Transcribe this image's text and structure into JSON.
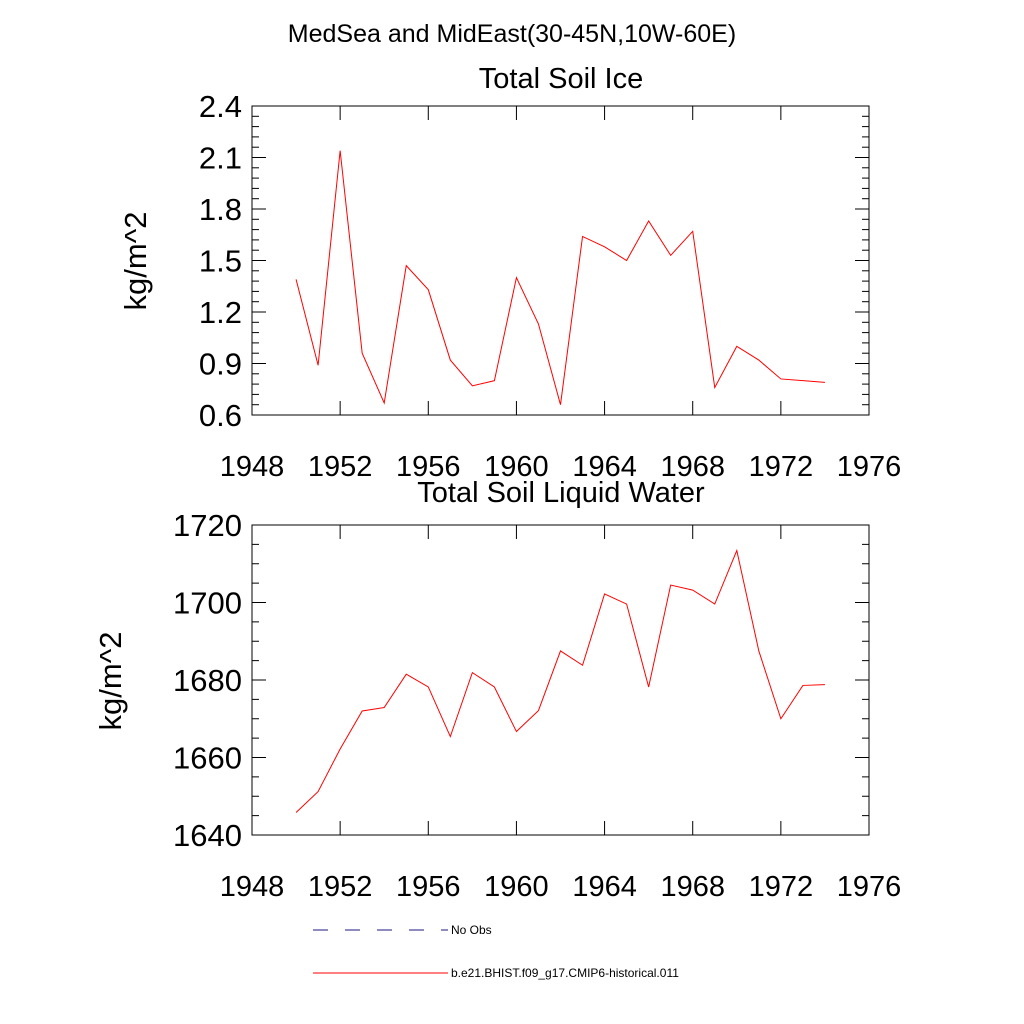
{
  "figure": {
    "main_title": "MedSea and MidEast(30-45N,10W-60E)"
  },
  "colors": {
    "model_series": "#ff0000",
    "obs_series": "#1a1a80",
    "axes": "#000000"
  },
  "chart_data": [
    {
      "type": "line",
      "title": "Total Soil Ice",
      "xlabel": "",
      "ylabel": "kg/m^2",
      "xlim": [
        1948,
        1976
      ],
      "ylim": [
        0.6,
        2.4
      ],
      "x_ticks": [
        1948,
        1952,
        1956,
        1960,
        1964,
        1968,
        1972,
        1976
      ],
      "x_tick_labels": [
        "1948",
        "1952",
        "1956",
        "1960",
        "1964",
        "1968",
        "1972",
        "1976"
      ],
      "y_ticks": [
        0.6,
        0.9,
        1.2,
        1.5,
        1.8,
        2.1,
        2.4
      ],
      "y_tick_labels": [
        "0.6",
        "0.9",
        "1.2",
        "1.5",
        "1.8",
        "2.1",
        "2.4"
      ],
      "grid": false,
      "series": [
        {
          "name": "b.e21.BHIST.f09_g17.CMIP6-historical.011",
          "color": "#ff0000",
          "x": [
            1950,
            1951,
            1952,
            1953,
            1954,
            1955,
            1956,
            1957,
            1958,
            1959,
            1960,
            1961,
            1962,
            1963,
            1964,
            1965,
            1966,
            1967,
            1968,
            1969,
            1970,
            1971,
            1972,
            1973,
            1974
          ],
          "y": [
            1.39,
            0.89,
            2.14,
            0.96,
            0.67,
            1.47,
            1.33,
            0.92,
            0.77,
            0.8,
            1.4,
            1.13,
            0.66,
            1.64,
            1.58,
            1.5,
            1.73,
            1.53,
            1.67,
            0.76,
            1.0,
            0.92,
            0.81,
            0.8,
            0.79
          ]
        }
      ]
    },
    {
      "type": "line",
      "title": "Total Soil Liquid Water",
      "xlabel": "",
      "ylabel": "kg/m^2",
      "xlim": [
        1948,
        1976
      ],
      "ylim": [
        1640,
        1720
      ],
      "x_ticks": [
        1948,
        1952,
        1956,
        1960,
        1964,
        1968,
        1972,
        1976
      ],
      "x_tick_labels": [
        "1948",
        "1952",
        "1956",
        "1960",
        "1964",
        "1968",
        "1972",
        "1976"
      ],
      "y_ticks": [
        1640,
        1660,
        1680,
        1700,
        1720
      ],
      "y_tick_labels": [
        "1640",
        "1660",
        "1680",
        "1700",
        "1720"
      ],
      "grid": false,
      "series": [
        {
          "name": "b.e21.BHIST.f09_g17.CMIP6-historical.011",
          "color": "#ff0000",
          "x": [
            1950,
            1951,
            1952,
            1953,
            1954,
            1955,
            1956,
            1957,
            1958,
            1959,
            1960,
            1961,
            1962,
            1963,
            1964,
            1965,
            1966,
            1967,
            1968,
            1969,
            1970,
            1971,
            1972,
            1973,
            1974
          ],
          "y": [
            1645.8,
            1651.2,
            1662.2,
            1672.0,
            1672.9,
            1681.5,
            1678.2,
            1665.4,
            1681.9,
            1678.2,
            1666.7,
            1672.1,
            1687.5,
            1683.8,
            1702.2,
            1699.6,
            1678.2,
            1704.5,
            1703.2,
            1699.6,
            1713.4,
            1687.5,
            1670.0,
            1678.6,
            1678.8
          ]
        }
      ]
    }
  ],
  "legend": {
    "placement": "bottom-center",
    "items": [
      {
        "label": "No Obs",
        "style": "dashed",
        "color": "#1a1a80"
      },
      {
        "label": "b.e21.BHIST.f09_g17.CMIP6-historical.011",
        "style": "solid",
        "color": "#ff0000"
      }
    ]
  }
}
